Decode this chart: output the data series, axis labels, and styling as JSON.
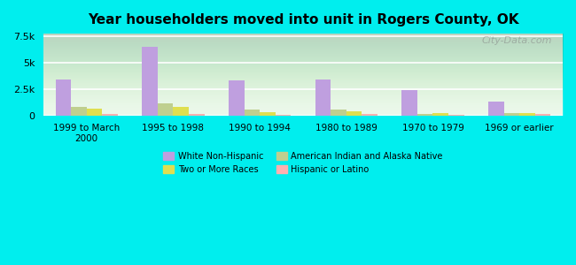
{
  "title": "Year householders moved into unit in Rogers County, OK",
  "categories": [
    "1999 to March\n2000",
    "1995 to 1998",
    "1990 to 1994",
    "1980 to 1989",
    "1970 to 1979",
    "1969 or earlier"
  ],
  "series": {
    "White Non-Hispanic": [
      3400,
      6500,
      3300,
      3400,
      2400,
      1300
    ],
    "American Indian and Alaska Native": [
      800,
      1100,
      550,
      550,
      150,
      200
    ],
    "Two or More Races": [
      650,
      800,
      300,
      400,
      200,
      200
    ],
    "Hispanic or Latino": [
      150,
      150,
      50,
      100,
      50,
      100
    ]
  },
  "colors": {
    "White Non-Hispanic": "#bf9fdf",
    "American Indian and Alaska Native": "#bfcf8f",
    "Two or More Races": "#dfdf50",
    "Hispanic or Latino": "#ffb0b0"
  },
  "ylim": [
    0,
    7700
  ],
  "yticks": [
    0,
    2500,
    5000,
    7500
  ],
  "ytick_labels": [
    "0",
    "2.5k",
    "5k",
    "7.5k"
  ],
  "background_color": "#00eeee",
  "watermark": "City-Data.com",
  "bar_width": 0.18
}
